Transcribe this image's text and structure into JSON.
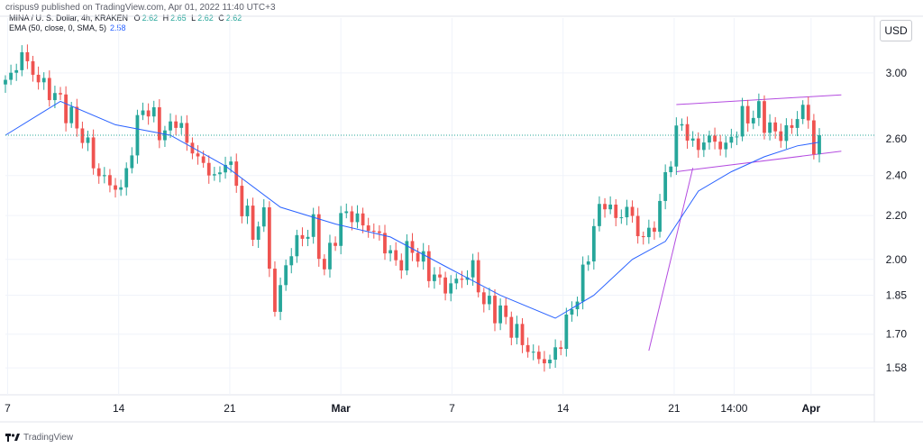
{
  "header": {
    "published": "crispus9 published on TradingView.com, Apr 01, 2022 11:40 UTC+3",
    "symbol": "MINA / U. S. Dollar, 4h, KRAKEN",
    "ohlc": {
      "o_label": "O",
      "o": "2.62",
      "h_label": "H",
      "h": "2.65",
      "l_label": "L",
      "l": "2.62",
      "c_label": "C",
      "c": "2.62"
    },
    "indicator": "EMA (50, close, 0, SMA, 5)",
    "indicator_value": "2.58"
  },
  "currency_button": "USD",
  "footer": {
    "brand": "TradingView"
  },
  "colors": {
    "up": "#26a69a",
    "down": "#ef5350",
    "ema": "#2962ff",
    "channel": "#b44ce0",
    "grid": "#f0f3fa",
    "pointer": "#26a69a"
  },
  "icons": [
    "tradingview-logo-icon"
  ],
  "chart_data": {
    "type": "candlestick",
    "title": "MINA / U. S. Dollar, 4h, KRAKEN",
    "y_scale": "log",
    "ylim": [
      1.49,
      3.25
    ],
    "y_ticks": [
      "3.00",
      "2.60",
      "2.40",
      "2.20",
      "2.00",
      "1.85",
      "1.70",
      "1.58"
    ],
    "x_ticks": [
      "7",
      "14",
      "21",
      "Mar",
      "7",
      "14",
      "21",
      "14:00",
      "Apr"
    ],
    "last_price": 2.62,
    "key_prices": [
      {
        "t": 0,
        "price": 2.92
      },
      {
        "t": 3,
        "price": 3.12
      },
      {
        "t": 6,
        "price": 2.95
      },
      {
        "t": 10,
        "price": 2.82
      },
      {
        "t": 14,
        "price": 2.62
      },
      {
        "t": 17,
        "price": 2.4
      },
      {
        "t": 21,
        "price": 2.32
      },
      {
        "t": 23,
        "price": 2.55
      },
      {
        "t": 25,
        "price": 2.8
      },
      {
        "t": 29,
        "price": 2.62
      },
      {
        "t": 31,
        "price": 2.72
      },
      {
        "t": 33,
        "price": 2.58
      },
      {
        "t": 36,
        "price": 2.45
      },
      {
        "t": 39,
        "price": 2.38
      },
      {
        "t": 40,
        "price": 2.52
      },
      {
        "t": 43,
        "price": 2.25
      },
      {
        "t": 45,
        "price": 2.12
      },
      {
        "t": 47,
        "price": 2.2
      },
      {
        "t": 49,
        "price": 1.78
      },
      {
        "t": 51,
        "price": 1.98
      },
      {
        "t": 53,
        "price": 2.08
      },
      {
        "t": 56,
        "price": 2.15
      },
      {
        "t": 58,
        "price": 1.95
      },
      {
        "t": 60,
        "price": 2.12
      },
      {
        "t": 62,
        "price": 2.22
      },
      {
        "t": 65,
        "price": 2.16
      },
      {
        "t": 68,
        "price": 2.1
      },
      {
        "t": 71,
        "price": 1.98
      },
      {
        "t": 74,
        "price": 2.05
      },
      {
        "t": 77,
        "price": 1.95
      },
      {
        "t": 80,
        "price": 1.88
      },
      {
        "t": 83,
        "price": 1.92
      },
      {
        "t": 85,
        "price": 1.96
      },
      {
        "t": 87,
        "price": 1.82
      },
      {
        "t": 90,
        "price": 1.78
      },
      {
        "t": 93,
        "price": 1.7
      },
      {
        "t": 96,
        "price": 1.62
      },
      {
        "t": 99,
        "price": 1.6
      },
      {
        "t": 101,
        "price": 1.68
      },
      {
        "t": 103,
        "price": 1.8
      },
      {
        "t": 105,
        "price": 1.92
      },
      {
        "t": 107,
        "price": 2.15
      },
      {
        "t": 109,
        "price": 2.28
      },
      {
        "t": 111,
        "price": 2.18
      },
      {
        "t": 113,
        "price": 2.24
      },
      {
        "t": 115,
        "price": 2.12
      },
      {
        "t": 117,
        "price": 2.1
      },
      {
        "t": 119,
        "price": 2.25
      },
      {
        "t": 121,
        "price": 2.52
      },
      {
        "t": 123,
        "price": 2.7
      },
      {
        "t": 125,
        "price": 2.55
      },
      {
        "t": 128,
        "price": 2.6
      },
      {
        "t": 131,
        "price": 2.55
      },
      {
        "t": 134,
        "price": 2.72
      },
      {
        "t": 137,
        "price": 2.75
      },
      {
        "t": 140,
        "price": 2.62
      },
      {
        "t": 143,
        "price": 2.66
      },
      {
        "t": 145,
        "price": 2.8
      },
      {
        "t": 147,
        "price": 2.55
      },
      {
        "t": 148,
        "price": 2.62
      }
    ],
    "ema_points": [
      {
        "t": 0,
        "price": 2.62
      },
      {
        "t": 10,
        "price": 2.82
      },
      {
        "t": 20,
        "price": 2.68
      },
      {
        "t": 30,
        "price": 2.62
      },
      {
        "t": 40,
        "price": 2.45
      },
      {
        "t": 50,
        "price": 2.24
      },
      {
        "t": 60,
        "price": 2.16
      },
      {
        "t": 70,
        "price": 2.1
      },
      {
        "t": 80,
        "price": 1.97
      },
      {
        "t": 90,
        "price": 1.85
      },
      {
        "t": 100,
        "price": 1.76
      },
      {
        "t": 107,
        "price": 1.85
      },
      {
        "t": 114,
        "price": 2.0
      },
      {
        "t": 120,
        "price": 2.08
      },
      {
        "t": 126,
        "price": 2.32
      },
      {
        "t": 132,
        "price": 2.42
      },
      {
        "t": 138,
        "price": 2.5
      },
      {
        "t": 144,
        "price": 2.56
      },
      {
        "t": 148,
        "price": 2.58
      }
    ],
    "annotations": [
      {
        "kind": "channel-upper",
        "from": {
          "t": 122,
          "price": 2.8
        },
        "to": {
          "t": 152,
          "price": 2.86
        }
      },
      {
        "kind": "channel-lower",
        "from": {
          "t": 122,
          "price": 2.42
        },
        "to": {
          "t": 152,
          "price": 2.53
        }
      },
      {
        "kind": "trendline",
        "from": {
          "t": 117,
          "price": 1.64
        },
        "to": {
          "t": 125,
          "price": 2.44
        }
      }
    ]
  }
}
